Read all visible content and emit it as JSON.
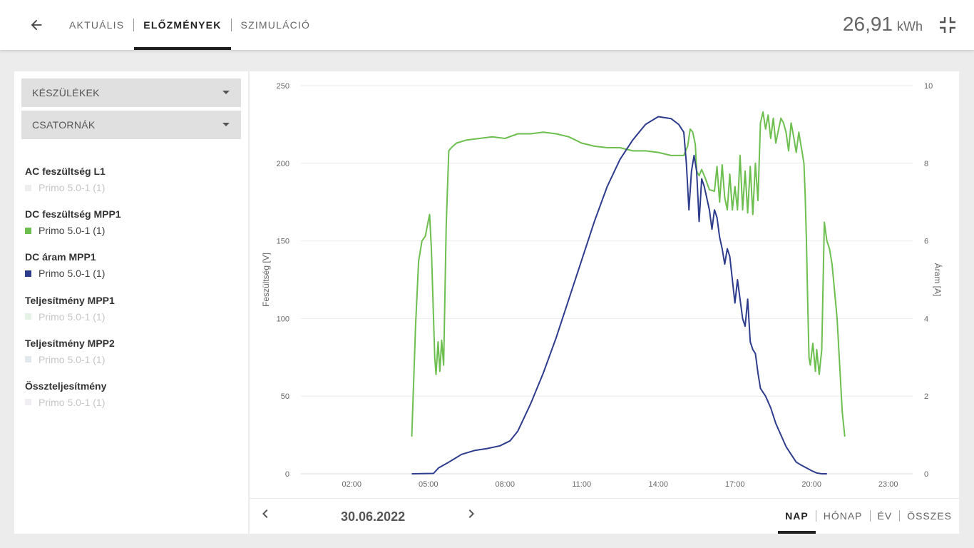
{
  "header": {
    "tabs": [
      {
        "label": "AKTUÁLIS"
      },
      {
        "label": "ELŐZMÉNYEK"
      },
      {
        "label": "SZIMULÁCIÓ"
      }
    ],
    "energy_value": "26,91",
    "energy_unit": "kWh"
  },
  "sidebar": {
    "dropdowns": [
      {
        "label": "KÉSZÜLÉKEK"
      },
      {
        "label": "CSATORNÁK"
      }
    ],
    "legend": [
      {
        "title": "AC feszültség L1",
        "item": "Primo 5.0-1 (1)",
        "color": "#eeeeee",
        "active": false
      },
      {
        "title": "DC feszültség MPP1",
        "item": "Primo 5.0-1 (1)",
        "color": "#6cbf4e",
        "active": true
      },
      {
        "title": "DC áram MPP1",
        "item": "Primo 5.0-1 (1)",
        "color": "#2d3c8c",
        "active": true
      },
      {
        "title": "Teljesítmény MPP1",
        "item": "Primo 5.0-1 (1)",
        "color": "#e4f2e6",
        "active": false
      },
      {
        "title": "Teljesítmény MPP2",
        "item": "Primo 5.0-1 (1)",
        "color": "#e2e9ec",
        "active": false
      },
      {
        "title": "Összteljesítmény",
        "item": "Primo 5.0-1 (1)",
        "color": "#f0eef2",
        "active": false
      }
    ]
  },
  "chart_data": {
    "type": "line",
    "title": "",
    "xlabel": "",
    "ylabel_left": "Feszültség [V]",
    "ylabel_right": "Áram [A]",
    "x_ticks": [
      "02:00",
      "05:00",
      "08:00",
      "11:00",
      "14:00",
      "17:00",
      "20:00",
      "23:00"
    ],
    "xlim_hours": [
      0,
      24
    ],
    "y_left_ticks": [
      "0",
      "50",
      "100",
      "150",
      "200",
      "250"
    ],
    "ylim_left": [
      0,
      250
    ],
    "y_right_ticks": [
      "0",
      "2",
      "4",
      "6",
      "8",
      "10"
    ],
    "ylim_right": [
      0,
      10
    ],
    "grid": true,
    "series": [
      {
        "name": "DC feszültség MPP1",
        "axis": "left",
        "color": "#6cbf4e",
        "points": [
          [
            4.35,
            24
          ],
          [
            4.5,
            95
          ],
          [
            4.62,
            137
          ],
          [
            4.75,
            150
          ],
          [
            4.88,
            153
          ],
          [
            5.0,
            163
          ],
          [
            5.05,
            167
          ],
          [
            5.12,
            145
          ],
          [
            5.25,
            75
          ],
          [
            5.3,
            64
          ],
          [
            5.38,
            85
          ],
          [
            5.45,
            66
          ],
          [
            5.52,
            86
          ],
          [
            5.6,
            70
          ],
          [
            5.7,
            160
          ],
          [
            5.8,
            208
          ],
          [
            5.9,
            210
          ],
          [
            6.1,
            213
          ],
          [
            6.5,
            215
          ],
          [
            7.0,
            216
          ],
          [
            7.5,
            217
          ],
          [
            8.0,
            216
          ],
          [
            8.5,
            219
          ],
          [
            9.0,
            219
          ],
          [
            9.5,
            220
          ],
          [
            10.0,
            219
          ],
          [
            10.5,
            217
          ],
          [
            11.0,
            213
          ],
          [
            11.5,
            211
          ],
          [
            12.0,
            210
          ],
          [
            12.5,
            210
          ],
          [
            13.0,
            208
          ],
          [
            13.5,
            208
          ],
          [
            14.0,
            207
          ],
          [
            14.5,
            205
          ],
          [
            15.0,
            205
          ],
          [
            15.15,
            211
          ],
          [
            15.25,
            222
          ],
          [
            15.35,
            220
          ],
          [
            15.45,
            212
          ],
          [
            15.5,
            195
          ],
          [
            15.6,
            192
          ],
          [
            15.7,
            196
          ],
          [
            15.85,
            190
          ],
          [
            16.0,
            183
          ],
          [
            16.2,
            182
          ],
          [
            16.3,
            198
          ],
          [
            16.4,
            175
          ],
          [
            16.5,
            199
          ],
          [
            16.6,
            178
          ],
          [
            16.7,
            170
          ],
          [
            16.8,
            193
          ],
          [
            16.9,
            170
          ],
          [
            17.0,
            185
          ],
          [
            17.1,
            170
          ],
          [
            17.2,
            205
          ],
          [
            17.3,
            170
          ],
          [
            17.4,
            195
          ],
          [
            17.5,
            168
          ],
          [
            17.6,
            198
          ],
          [
            17.7,
            167
          ],
          [
            17.8,
            200
          ],
          [
            17.9,
            176
          ],
          [
            18.0,
            226
          ],
          [
            18.1,
            233
          ],
          [
            18.2,
            222
          ],
          [
            18.3,
            231
          ],
          [
            18.4,
            216
          ],
          [
            18.5,
            229
          ],
          [
            18.6,
            213
          ],
          [
            18.7,
            221
          ],
          [
            18.8,
            229
          ],
          [
            18.9,
            226
          ],
          [
            19.0,
            220
          ],
          [
            19.1,
            208
          ],
          [
            19.2,
            226
          ],
          [
            19.3,
            217
          ],
          [
            19.4,
            207
          ],
          [
            19.5,
            220
          ],
          [
            19.6,
            210
          ],
          [
            19.7,
            200
          ],
          [
            19.75,
            180
          ],
          [
            19.8,
            150
          ],
          [
            19.85,
            110
          ],
          [
            19.9,
            75
          ],
          [
            19.95,
            70
          ],
          [
            20.05,
            84
          ],
          [
            20.15,
            66
          ],
          [
            20.2,
            80
          ],
          [
            20.3,
            64
          ],
          [
            20.4,
            80
          ],
          [
            20.5,
            162
          ],
          [
            20.6,
            150
          ],
          [
            20.7,
            145
          ],
          [
            20.8,
            135
          ],
          [
            20.9,
            118
          ],
          [
            21.0,
            100
          ],
          [
            21.1,
            70
          ],
          [
            21.2,
            40
          ],
          [
            21.3,
            24
          ]
        ]
      },
      {
        "name": "DC áram MPP1",
        "axis": "right",
        "color": "#2d3c8c",
        "points": [
          [
            4.35,
            0.0
          ],
          [
            5.2,
            0.01
          ],
          [
            5.4,
            0.15
          ],
          [
            5.8,
            0.3
          ],
          [
            6.3,
            0.5
          ],
          [
            6.8,
            0.6
          ],
          [
            7.3,
            0.65
          ],
          [
            7.8,
            0.72
          ],
          [
            8.2,
            0.85
          ],
          [
            8.5,
            1.1
          ],
          [
            9.0,
            1.8
          ],
          [
            9.5,
            2.6
          ],
          [
            10.0,
            3.5
          ],
          [
            10.5,
            4.5
          ],
          [
            11.0,
            5.5
          ],
          [
            11.5,
            6.5
          ],
          [
            12.0,
            7.4
          ],
          [
            12.5,
            8.1
          ],
          [
            13.0,
            8.6
          ],
          [
            13.5,
            9.0
          ],
          [
            14.0,
            9.2
          ],
          [
            14.5,
            9.15
          ],
          [
            14.8,
            9.0
          ],
          [
            15.0,
            8.8
          ],
          [
            15.1,
            8.0
          ],
          [
            15.2,
            6.8
          ],
          [
            15.3,
            7.8
          ],
          [
            15.4,
            8.2
          ],
          [
            15.5,
            7.8
          ],
          [
            15.6,
            6.5
          ],
          [
            15.7,
            7.6
          ],
          [
            15.8,
            7.4
          ],
          [
            16.0,
            6.8
          ],
          [
            16.1,
            6.3
          ],
          [
            16.2,
            6.8
          ],
          [
            16.3,
            6.6
          ],
          [
            16.4,
            6.1
          ],
          [
            16.5,
            5.8
          ],
          [
            16.6,
            5.4
          ],
          [
            16.7,
            5.8
          ],
          [
            16.8,
            5.6
          ],
          [
            16.9,
            5.0
          ],
          [
            17.0,
            4.4
          ],
          [
            17.1,
            5.0
          ],
          [
            17.2,
            4.5
          ],
          [
            17.3,
            4.0
          ],
          [
            17.4,
            3.8
          ],
          [
            17.5,
            4.5
          ],
          [
            17.6,
            3.4
          ],
          [
            17.7,
            3.2
          ],
          [
            17.8,
            3.1
          ],
          [
            17.9,
            2.6
          ],
          [
            18.0,
            2.2
          ],
          [
            18.2,
            2.0
          ],
          [
            18.4,
            1.7
          ],
          [
            18.6,
            1.3
          ],
          [
            18.8,
            1.0
          ],
          [
            19.0,
            0.7
          ],
          [
            19.2,
            0.5
          ],
          [
            19.4,
            0.3
          ],
          [
            19.6,
            0.22
          ],
          [
            19.8,
            0.15
          ],
          [
            20.0,
            0.08
          ],
          [
            20.2,
            0.02
          ],
          [
            20.4,
            0.0
          ],
          [
            20.6,
            0.0
          ]
        ]
      }
    ]
  },
  "footer": {
    "date": "30.06.2022",
    "periods": [
      {
        "label": "NAP"
      },
      {
        "label": "HÓNAP"
      },
      {
        "label": "ÉV"
      },
      {
        "label": "ÖSSZES"
      }
    ]
  }
}
